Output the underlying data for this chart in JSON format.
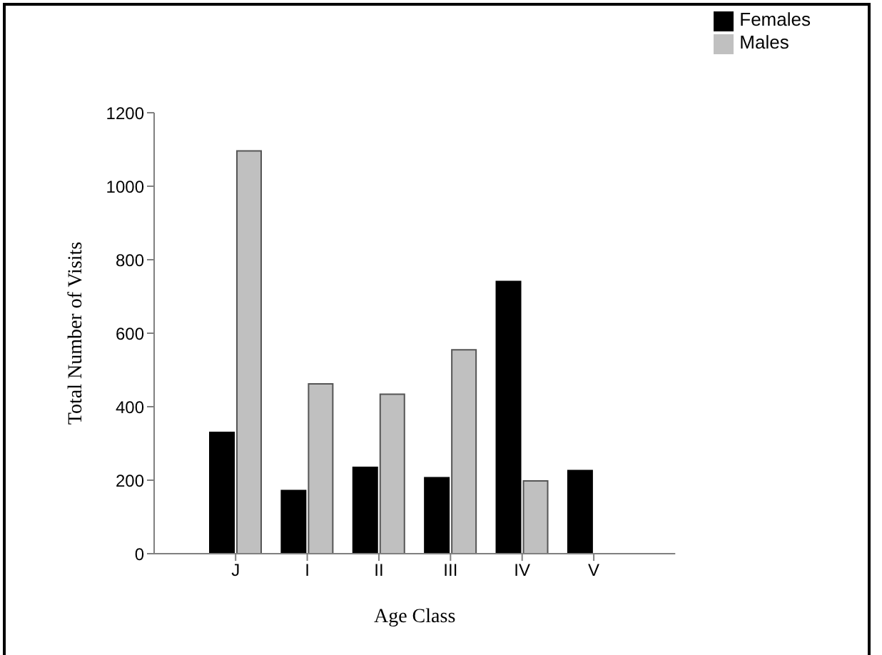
{
  "chart_data": {
    "type": "bar",
    "xlabel": "Age Class",
    "ylabel": "Total Number of Visits",
    "categories": [
      "J",
      "I",
      "II",
      "III",
      "IV",
      "V"
    ],
    "series": [
      {
        "name": "Females",
        "color": "#000000",
        "values": [
          330,
          172,
          235,
          207,
          741,
          226
        ]
      },
      {
        "name": "Males",
        "color": "#c0c0c0",
        "values": [
          1096,
          462,
          434,
          555,
          198,
          null
        ]
      }
    ],
    "ylim": [
      0,
      1200
    ],
    "yticks": [
      0,
      200,
      400,
      600,
      800,
      1000,
      1200
    ],
    "grid": false,
    "legend": "top right"
  }
}
